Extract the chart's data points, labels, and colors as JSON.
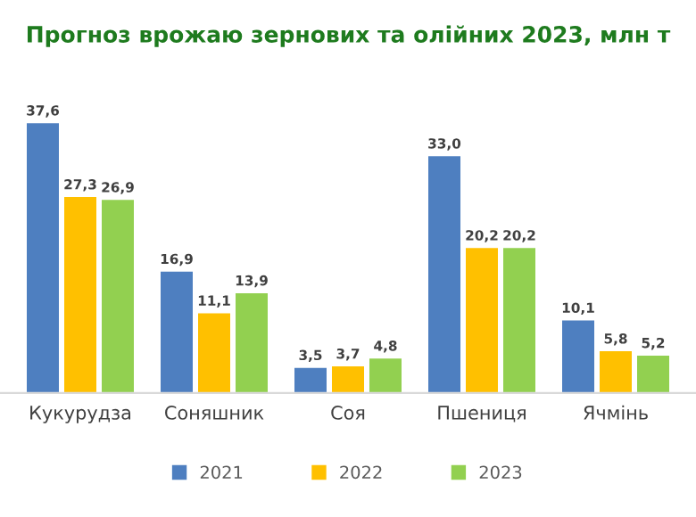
{
  "chart_data": {
    "type": "bar",
    "title": "Прогноз врожаю зернових та олійних 2023, млн т",
    "categories": [
      "Кукурудза",
      "Соняшник",
      "Соя",
      "Пшениця",
      "Ячмінь"
    ],
    "series": [
      {
        "name": "2021",
        "color": "#4e7fc0",
        "values": [
          37.6,
          16.9,
          3.5,
          33.0,
          10.1
        ],
        "value_labels": [
          "37,6",
          "16,9",
          "3,5",
          "33,0",
          "10,1"
        ]
      },
      {
        "name": "2022",
        "color": "#ffc000",
        "values": [
          27.3,
          11.1,
          3.7,
          20.2,
          5.8
        ],
        "value_labels": [
          "27,3",
          "11,1",
          "3,7",
          "20,2",
          "5,8"
        ]
      },
      {
        "name": "2023",
        "color": "#92d050",
        "values": [
          26.9,
          13.9,
          4.8,
          20.2,
          5.2
        ],
        "value_labels": [
          "26,9",
          "13,9",
          "4,8",
          "20,2",
          "5,2"
        ]
      }
    ],
    "legend": "bottom",
    "grid": false
  }
}
